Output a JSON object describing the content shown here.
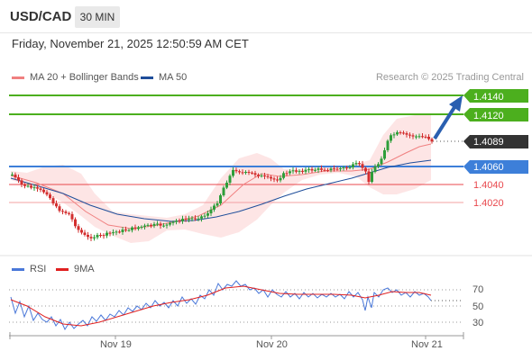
{
  "header": {
    "symbol": "USD/CAD",
    "timeframe": "30 MIN"
  },
  "datetime": "Friday, November 21, 2025 12:50:59 AM CET",
  "legend": {
    "ma20_label": "MA 20 + Bollinger Bands",
    "ma50_label": "MA 50",
    "research": "Research © 2025 Trading Central"
  },
  "levels": {
    "target2": "1.4140",
    "target1": "1.4120",
    "current": "1.4089",
    "pivot": "1.4060",
    "support1": "1.4040",
    "support2": "1.4020"
  },
  "rsi_legend": {
    "rsi_label": "RSI",
    "ma_label": "9MA"
  },
  "rsi_axis": [
    "70",
    "50",
    "30"
  ],
  "x_axis": [
    "Nov 19",
    "Nov 20",
    "Nov 21"
  ],
  "colors": {
    "target": "#4caf1e",
    "pivot": "#3d7fd9",
    "support": "#e8474c",
    "ma20": "#f08080",
    "ma50": "#1f4e9a",
    "bollinger_fill": "#fde0e0",
    "bull_candle": "#2e9e3a",
    "bear_candle": "#d32f2f",
    "rsi": "#4a78d9",
    "rsi_ma": "#e02020",
    "arrow": "#2a5fb0",
    "current_label_bg": "#333333"
  },
  "chart_data": {
    "type": "candlestick",
    "price_levels": [
      1.414,
      1.412,
      1.4089,
      1.406,
      1.404,
      1.402
    ],
    "last_price": 1.4089,
    "rsi_scale": [
      30,
      50,
      70
    ],
    "x_ticks": [
      "Nov 19",
      "Nov 20",
      "Nov 21"
    ]
  }
}
